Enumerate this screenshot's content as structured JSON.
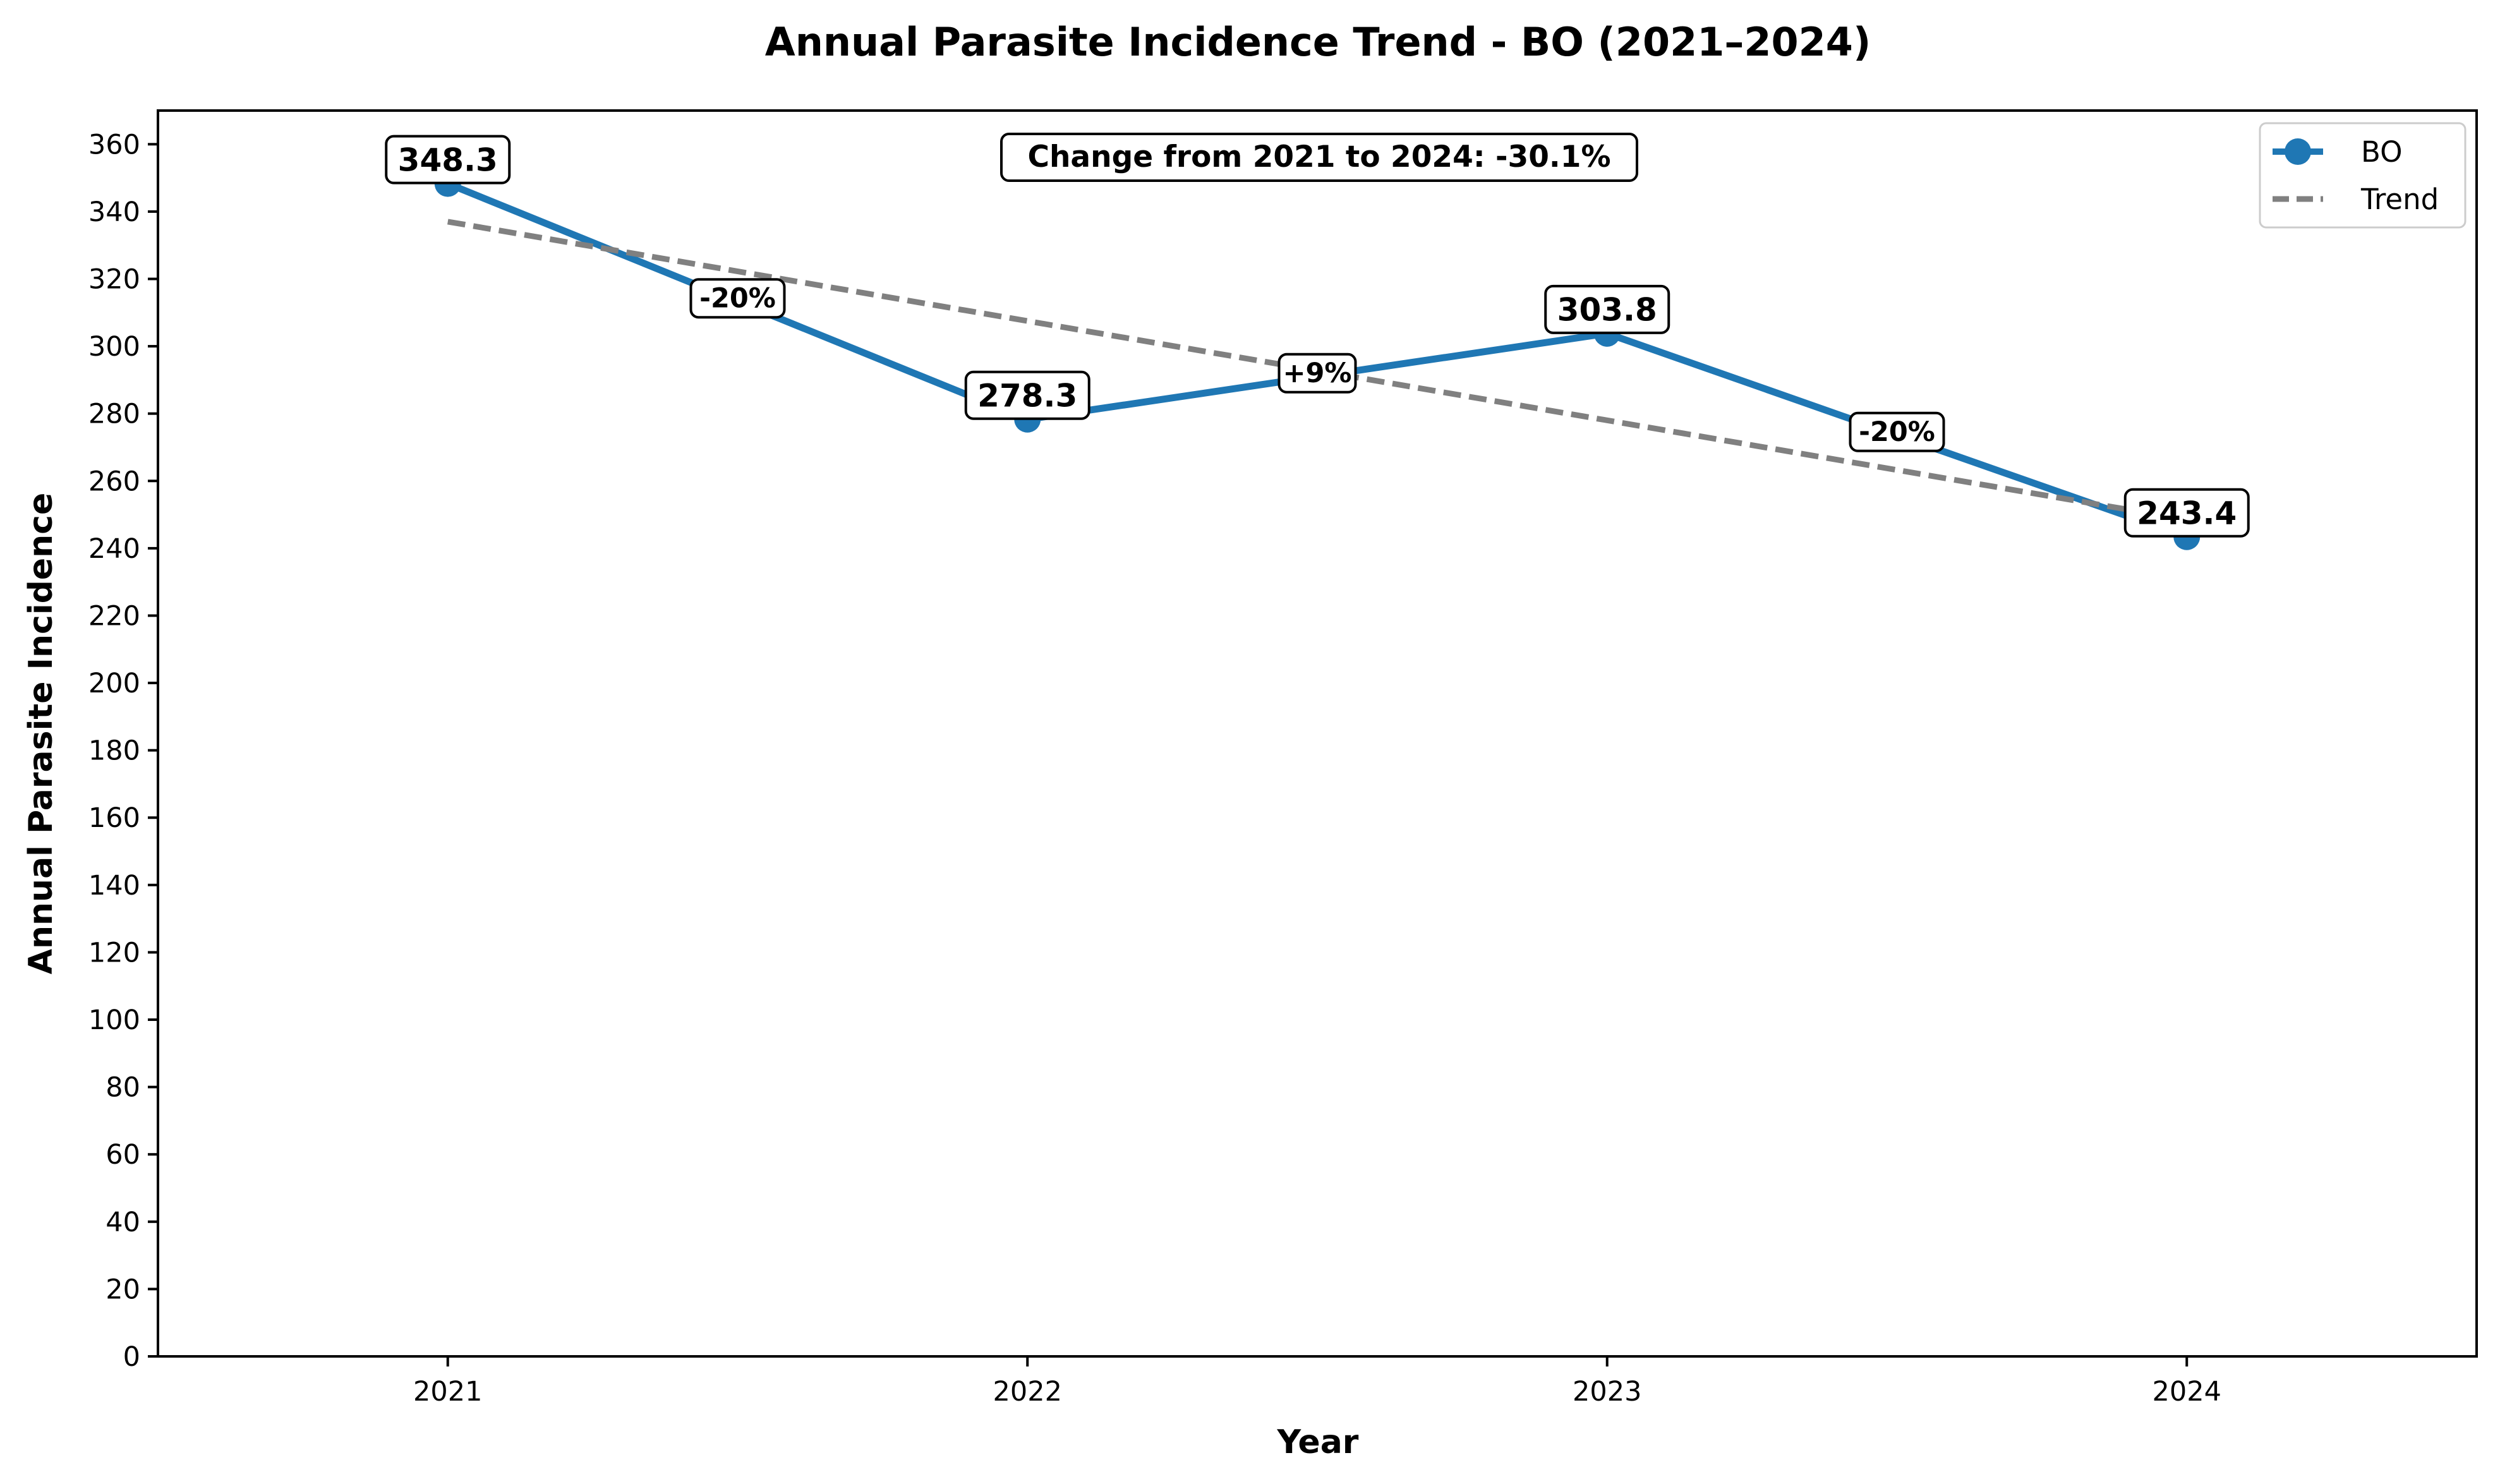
{
  "chart_data": {
    "type": "line",
    "title": "Annual Parasite Incidence Trend - BO (2021–2024)",
    "xlabel": "Year",
    "ylabel": "Annual Parasite Incidence",
    "x": [
      2021,
      2022,
      2023,
      2024
    ],
    "x_tick_labels": [
      "2021",
      "2022",
      "2023",
      "2024"
    ],
    "xlim": [
      2020.5,
      2024.5
    ],
    "ylim": [
      0,
      370
    ],
    "y_ticks": [
      0,
      20,
      40,
      60,
      80,
      100,
      120,
      140,
      160,
      180,
      200,
      220,
      240,
      260,
      280,
      300,
      320,
      340,
      360
    ],
    "series": [
      {
        "name": "BO",
        "values": [
          348.3,
          278.3,
          303.8,
          243.4
        ],
        "data_labels": [
          "348.3",
          "278.3",
          "303.8",
          "243.4"
        ],
        "color": "#1f77b4",
        "style": "solid",
        "marker": "circle"
      },
      {
        "name": "Trend",
        "values": [
          337.0,
          307.5,
          278.0,
          248.5
        ],
        "color": "#808080",
        "style": "dashed"
      }
    ],
    "segment_changes": [
      {
        "x_mid": 2021.5,
        "y_mid": 313.3,
        "label": "-20%"
      },
      {
        "x_mid": 2022.5,
        "y_mid": 291.05,
        "label": "+9%"
      },
      {
        "x_mid": 2023.5,
        "y_mid": 273.6,
        "label": "-20%"
      }
    ],
    "annotation": "Change from 2021 to 2024: -30.1%",
    "legend": {
      "position": "top-right",
      "entries": [
        "BO",
        "Trend"
      ]
    },
    "grid": false
  }
}
